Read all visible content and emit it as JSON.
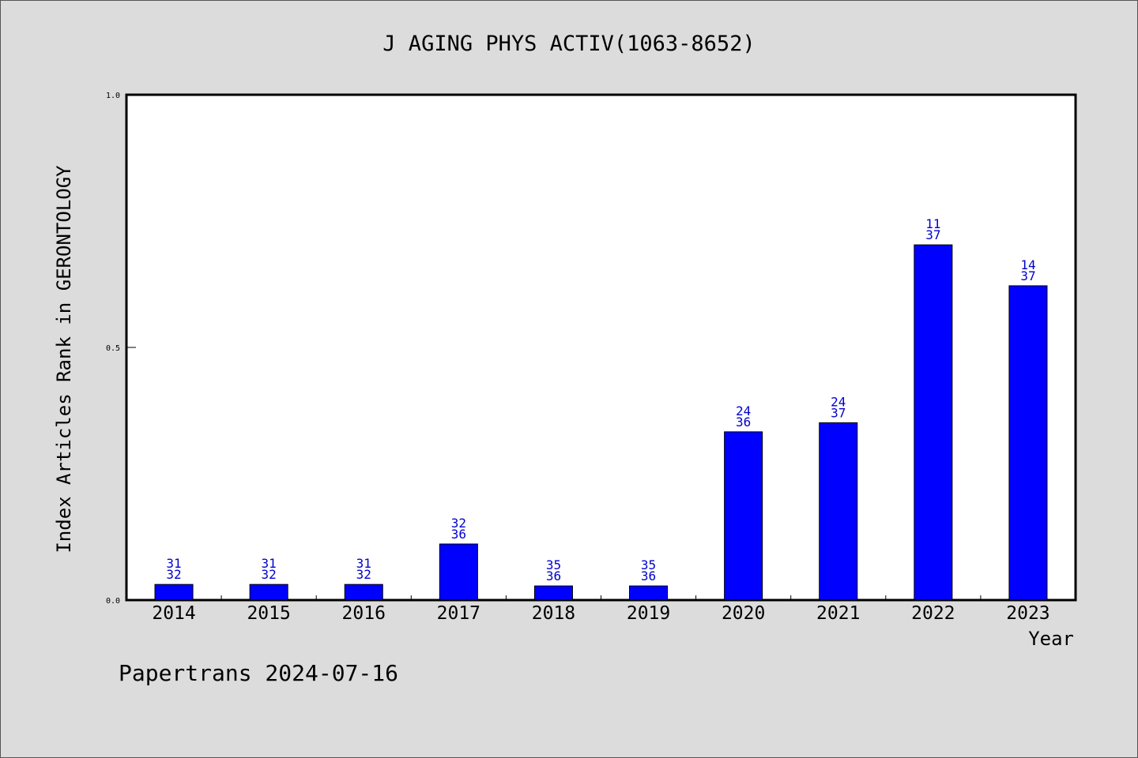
{
  "chart_data": {
    "type": "bar",
    "title": "J AGING PHYS ACTIV(1063-8652)",
    "xlabel": "Year",
    "ylabel": "Index Articles Rank in GERONTOLOGY",
    "ylim": [
      0,
      1.0
    ],
    "yticks": [
      "0.0",
      "0.5",
      "1.0"
    ],
    "categories": [
      "2014",
      "2015",
      "2016",
      "2017",
      "2018",
      "2019",
      "2020",
      "2021",
      "2022",
      "2023"
    ],
    "values": [
      0.031,
      0.031,
      0.031,
      0.111,
      0.028,
      0.028,
      0.333,
      0.351,
      0.703,
      0.622
    ],
    "ranks": [
      "31",
      "31",
      "31",
      "32",
      "35",
      "35",
      "24",
      "24",
      "11",
      "14"
    ],
    "totals": [
      "32",
      "32",
      "32",
      "36",
      "36",
      "36",
      "36",
      "37",
      "37",
      "37"
    ],
    "bar_color": "#0000ff",
    "label_color": "#0000cc",
    "grid": false,
    "legend": "none"
  },
  "footer": "Papertrans 2024-07-16"
}
